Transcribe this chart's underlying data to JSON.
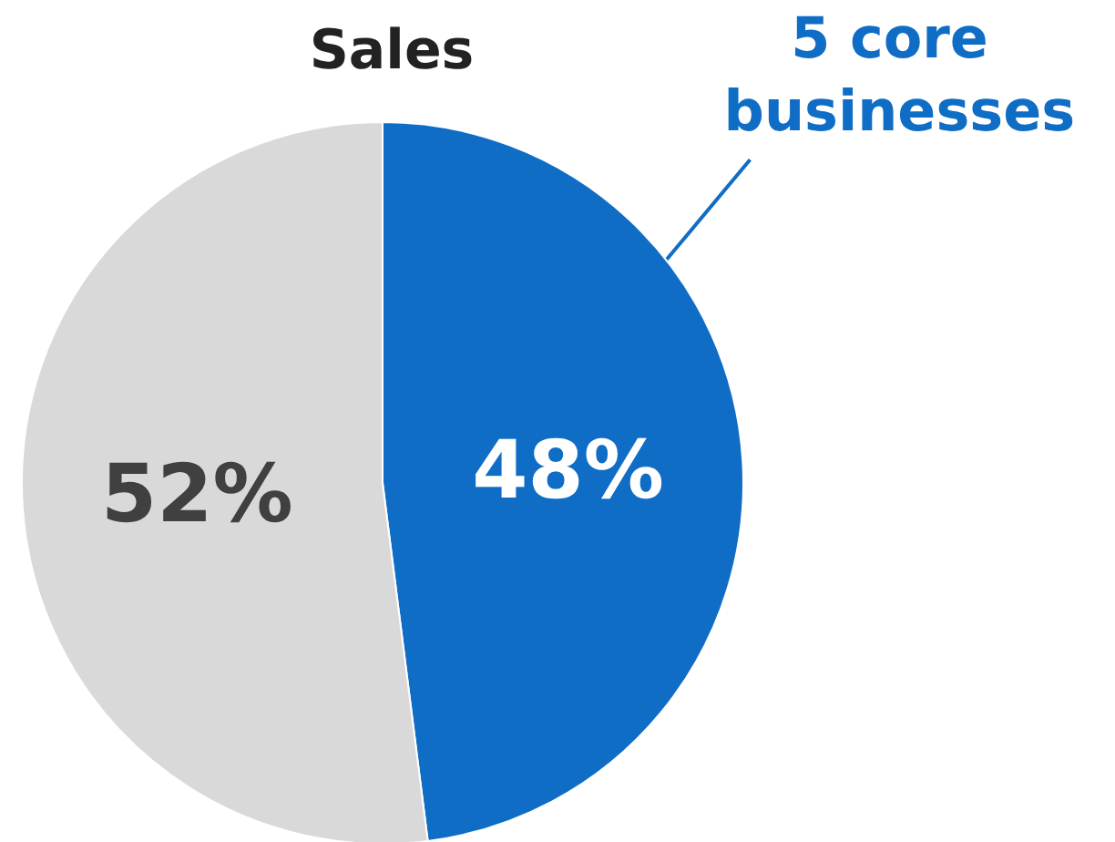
{
  "chart_data": {
    "type": "pie",
    "title": "Sales",
    "categories": [
      "5 core businesses",
      null
    ],
    "values": [
      48,
      52
    ],
    "colors": [
      "#0f6dc6",
      "#d9d9d9"
    ],
    "value_labels": [
      "48%",
      "52%"
    ]
  }
}
